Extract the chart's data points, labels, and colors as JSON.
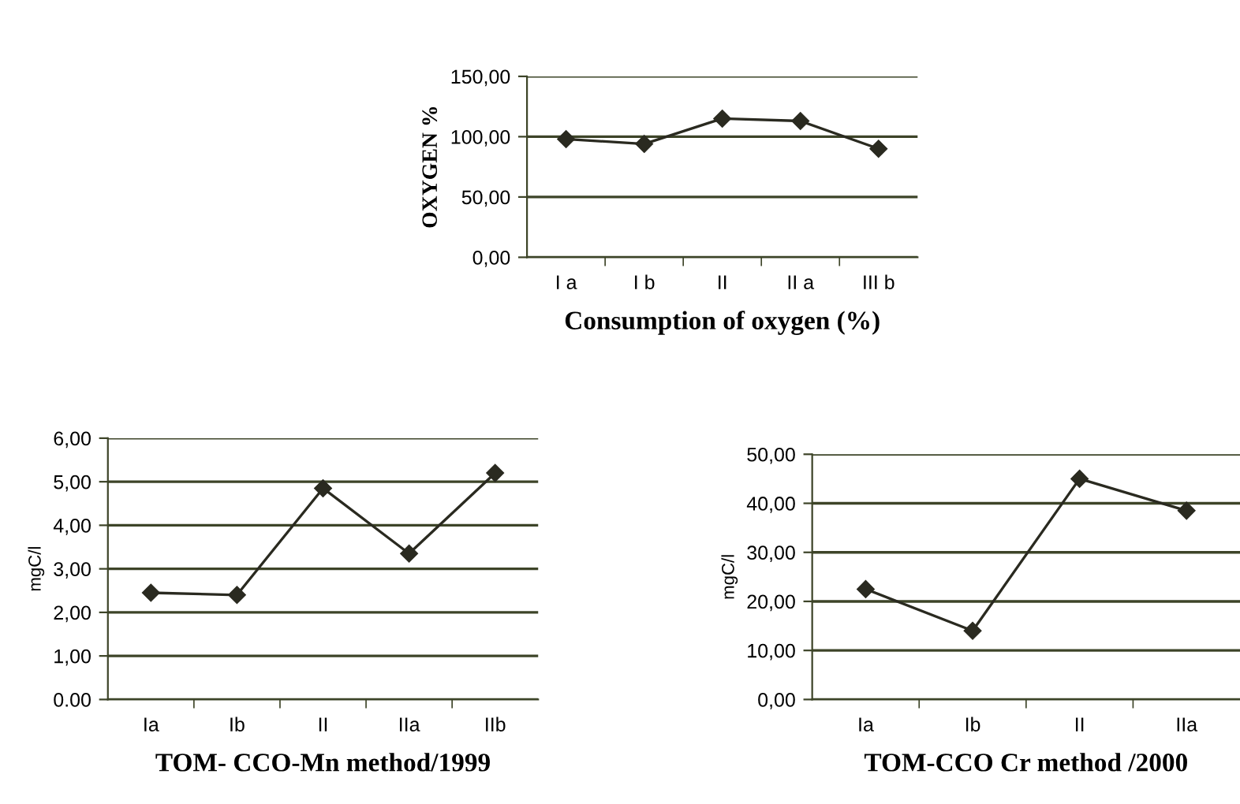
{
  "chart_data": [
    {
      "type": "line",
      "xlabel": "Consumption of oxygen (%)",
      "ylabel": "OXYGEN %",
      "categories": [
        "I a",
        "I b",
        "II",
        "II a",
        "III b"
      ],
      "series": [
        {
          "color": "#2a2a20",
          "values": [
            98,
            94,
            115,
            113,
            90
          ]
        }
      ],
      "ylim": [
        0,
        150
      ],
      "yticks": [
        {
          "value": 0,
          "label": "0,00"
        },
        {
          "value": 50,
          "label": "50,00"
        },
        {
          "value": 100,
          "label": "100,00"
        },
        {
          "value": 150,
          "label": "150,00"
        }
      ],
      "grid": "y",
      "marker": "diamond",
      "line_style": "solid"
    },
    {
      "type": "line",
      "xlabel": "TOM- CCO-Mn method/1999",
      "ylabel": "mgC/l",
      "categories": [
        "Ia",
        "Ib",
        "II",
        "IIa",
        "IIb"
      ],
      "series": [
        {
          "color": "#2a2a20",
          "values": [
            2.45,
            2.4,
            4.85,
            3.35,
            5.2
          ]
        }
      ],
      "ylim": [
        0,
        6
      ],
      "yticks": [
        {
          "value": 0,
          "label": "0.00"
        },
        {
          "value": 1,
          "label": "1,00"
        },
        {
          "value": 2,
          "label": "2,00"
        },
        {
          "value": 3,
          "label": "3,00"
        },
        {
          "value": 4,
          "label": "4,00"
        },
        {
          "value": 5,
          "label": "5,00"
        },
        {
          "value": 6,
          "label": "6,00"
        }
      ],
      "grid": "y",
      "marker": "diamond",
      "line_style": "solid"
    },
    {
      "type": "line",
      "xlabel": "TOM-CCO Cr method /2000",
      "ylabel": "mgC/l",
      "categories": [
        "Ia",
        "Ib",
        "II",
        "IIa"
      ],
      "series": [
        {
          "color": "#2a2a20",
          "values": [
            22.5,
            14,
            45,
            38.5
          ]
        }
      ],
      "ylim": [
        0,
        50
      ],
      "yticks": [
        {
          "value": 0,
          "label": "0,00"
        },
        {
          "value": 10,
          "label": "10,00"
        },
        {
          "value": 20,
          "label": "20,00"
        },
        {
          "value": 30,
          "label": "30,00"
        },
        {
          "value": 40,
          "label": "40,00"
        },
        {
          "value": 50,
          "label": "50,00"
        }
      ],
      "grid": "y",
      "marker": "diamond",
      "line_style": "solid"
    }
  ]
}
